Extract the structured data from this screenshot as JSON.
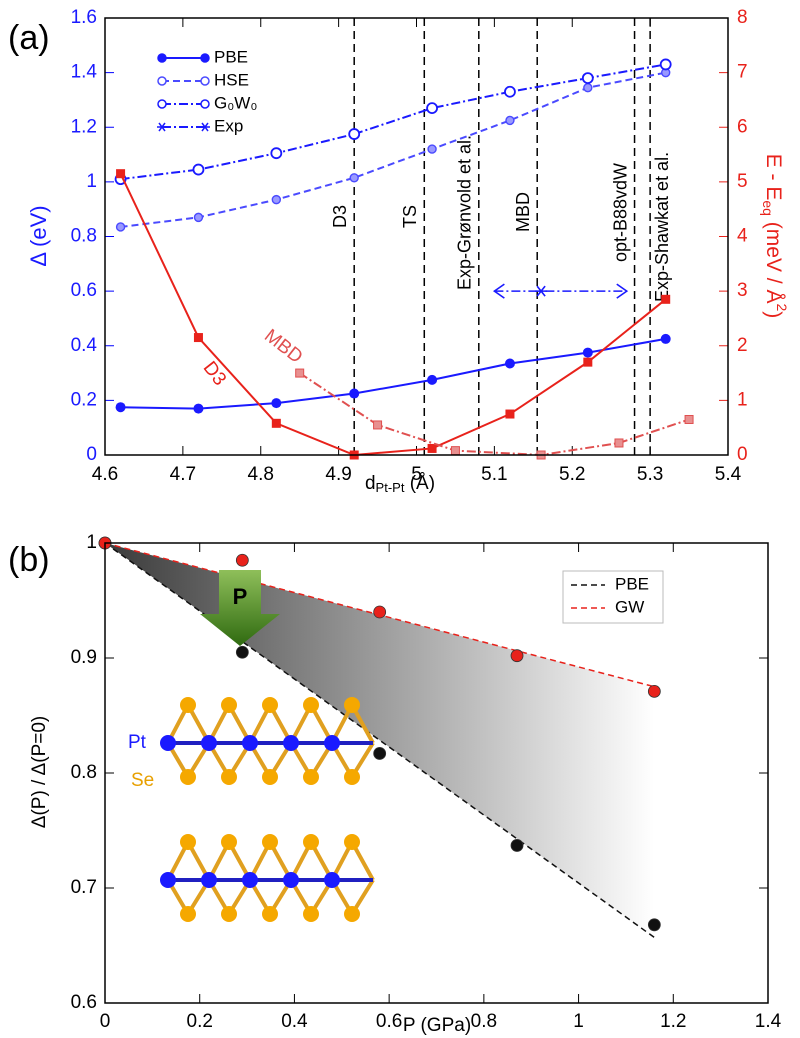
{
  "chart_data": [
    {
      "type": "line",
      "panel_label": "(a)",
      "xlabel": [
        "d",
        "Pt-Pt",
        " (Å)"
      ],
      "ylabel": "Δ (eV)",
      "y2label": [
        "E - E",
        "eq",
        " (meV / Å",
        "2",
        ")"
      ],
      "xlim": [
        4.6,
        5.4
      ],
      "xticks": [
        4.6,
        4.7,
        4.8,
        4.9,
        5,
        5.1,
        5.2,
        5.3,
        5.4
      ],
      "ylim": [
        0,
        1.6
      ],
      "yticks": [
        0,
        0.2,
        0.4,
        0.6,
        0.8,
        1,
        1.2,
        1.4,
        1.6
      ],
      "y2lim": [
        0,
        8
      ],
      "y2ticks": [
        0,
        1,
        2,
        3,
        4,
        5,
        6,
        7,
        8
      ],
      "series": [
        {
          "name": "PBE",
          "color": "#1a1aff",
          "style": "solid",
          "marker": "filled-circle",
          "in_legend": true,
          "x": [
            4.62,
            4.72,
            4.82,
            4.92,
            5.02,
            5.12,
            5.22,
            5.32
          ],
          "values": [
            0.175,
            0.17,
            0.19,
            0.225,
            0.275,
            0.335,
            0.375,
            0.425
          ]
        },
        {
          "name": "HSE",
          "color": "#4a4aff",
          "style": "dashed",
          "marker": "open-circle-small",
          "in_legend": true,
          "x": [
            4.62,
            4.72,
            4.82,
            4.92,
            5.02,
            5.12,
            5.22,
            5.32
          ],
          "values": [
            0.835,
            0.87,
            0.935,
            1.015,
            1.12,
            1.225,
            1.345,
            1.4
          ]
        },
        {
          "name": "G₀W₀",
          "color": "#1a1aff",
          "style": "dashdot",
          "marker": "open-circle",
          "in_legend": true,
          "x": [
            4.62,
            4.72,
            4.82,
            4.92,
            5.02,
            5.12,
            5.22,
            5.32
          ],
          "values": [
            1.01,
            1.045,
            1.105,
            1.175,
            1.27,
            1.33,
            1.38,
            1.43
          ]
        },
        {
          "name": "Exp",
          "color": "#1a1aff",
          "style": "dashdot",
          "marker": "star",
          "in_legend": true,
          "x": [
            5.16
          ],
          "values": [
            0.6
          ],
          "xrange": [
            5.1,
            5.27
          ]
        },
        {
          "name": "D3",
          "color": "#e8221b",
          "axis": "y2",
          "style": "solid",
          "marker": "square",
          "in_legend": false,
          "x": [
            4.62,
            4.72,
            4.82,
            4.92,
            5.02,
            5.12,
            5.22,
            5.32
          ],
          "values": [
            5.15,
            2.15,
            0.58,
            0,
            0.12,
            0.75,
            1.7,
            2.85
          ]
        },
        {
          "name": "MBD",
          "color": "#e05050",
          "axis": "y2",
          "style": "dashdot",
          "marker": "square-light",
          "in_legend": false,
          "x": [
            4.85,
            4.95,
            5.05,
            5.16,
            5.26,
            5.35
          ],
          "values": [
            1.5,
            0.55,
            0.08,
            0,
            0.22,
            0.65
          ]
        }
      ],
      "vlines": [
        {
          "x": 4.92,
          "label": "D3"
        },
        {
          "x": 5.01,
          "label": "TS"
        },
        {
          "x": 5.08,
          "label": "Exp-Grønvold et al."
        },
        {
          "x": 5.155,
          "label": "MBD"
        },
        {
          "x": 5.28,
          "label": "opt-B88vdW"
        },
        {
          "x": 5.3,
          "label": "Exp-Shawkat et al."
        }
      ]
    },
    {
      "type": "scatter",
      "panel_label": "(b)",
      "xlabel": "P (GPa)",
      "ylabel": "Δ(P) / Δ(P=0)",
      "xlim": [
        0,
        1.4
      ],
      "xticks": [
        0,
        0.2,
        0.4,
        0.6,
        0.8,
        1,
        1.2,
        1.4
      ],
      "ylim": [
        0.6,
        1
      ],
      "yticks": [
        0.6,
        0.7,
        0.8,
        0.9,
        1
      ],
      "legend": "upper right",
      "series": [
        {
          "name": "PBE",
          "color": "#111111",
          "x": [
            0,
            0.29,
            0.58,
            0.87,
            1.16
          ],
          "values": [
            1,
            0.905,
            0.817,
            0.737,
            0.668
          ],
          "fit_x": [
            0,
            1.16
          ],
          "fit_values": [
            1,
            0.657
          ]
        },
        {
          "name": "GW",
          "color": "#e8221b",
          "x": [
            0,
            0.29,
            0.58,
            0.87,
            1.16
          ],
          "values": [
            1,
            0.985,
            0.94,
            0.902,
            0.871
          ],
          "fit_x": [
            0,
            1.16
          ],
          "fit_values": [
            1,
            0.875
          ]
        }
      ],
      "inset": {
        "arrow_label": "P",
        "atom_labels": [
          "Pt",
          "Se"
        ]
      }
    }
  ]
}
